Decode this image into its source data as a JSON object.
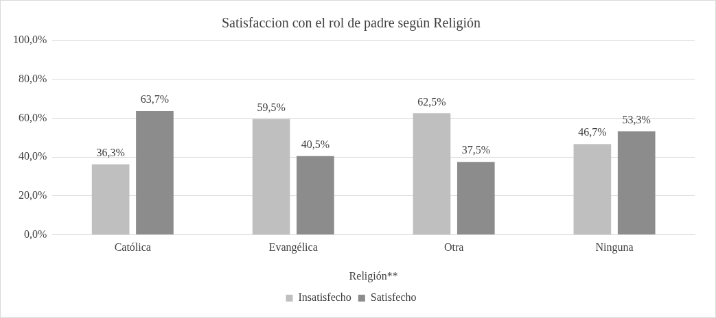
{
  "chart_data": {
    "type": "bar",
    "title": "Satisfaccion con el rol de padre según Religión",
    "xlabel": "Religión**",
    "categories": [
      "Católica",
      "Evangélica",
      "Otra",
      "Ninguna"
    ],
    "series": [
      {
        "name": "Insatisfecho",
        "color": "#bfbfbf",
        "values": [
          36.3,
          59.5,
          62.5,
          46.7
        ],
        "value_labels": [
          "36,3%",
          "59,5%",
          "62,5%",
          "46,7%"
        ]
      },
      {
        "name": "Satisfecho",
        "color": "#8c8c8c",
        "values": [
          63.7,
          40.5,
          37.5,
          53.3
        ],
        "value_labels": [
          "63,7%",
          "40,5%",
          "37,5%",
          "53,3%"
        ]
      }
    ],
    "ylim": [
      0,
      100
    ],
    "yticks": [
      {
        "value": 0,
        "label": "0,0%"
      },
      {
        "value": 20,
        "label": "20,0%"
      },
      {
        "value": 40,
        "label": "40,0%"
      },
      {
        "value": 60,
        "label": "60,0%"
      },
      {
        "value": 80,
        "label": "80,0%"
      },
      {
        "value": 100,
        "label": "100,0%"
      }
    ],
    "grid": "y",
    "legend": "bottom"
  }
}
